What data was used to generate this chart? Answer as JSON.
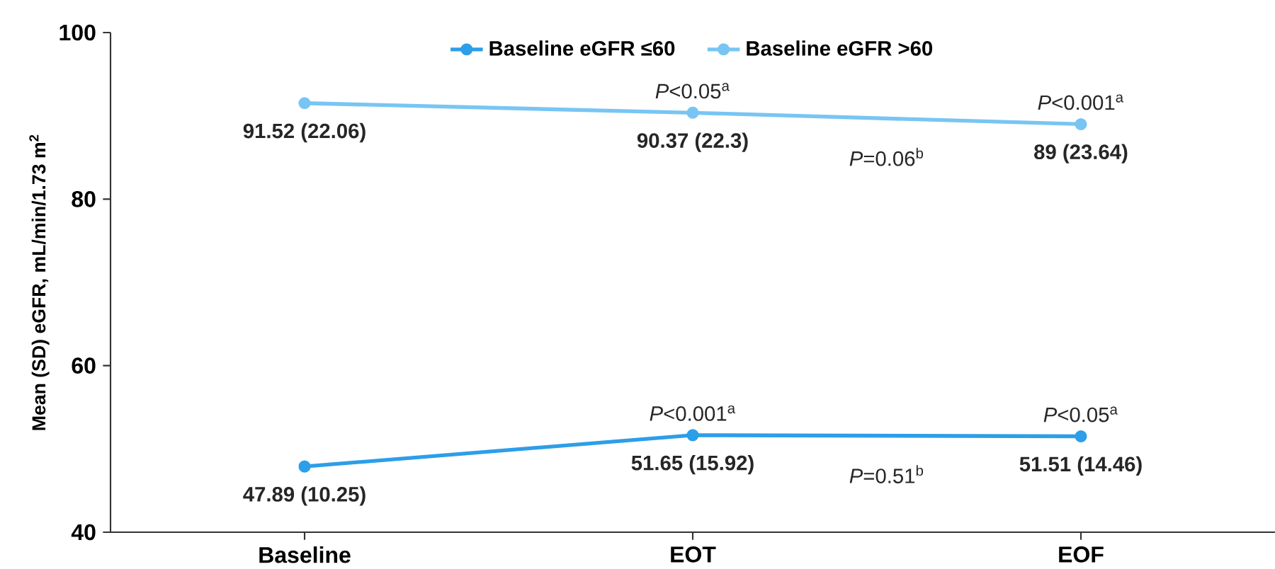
{
  "chart_data": {
    "type": "line",
    "ylabel": "Mean (SD) eGFR, mL/min/1.73 m$^{2}$",
    "categories": [
      "Baseline",
      "EOT",
      "EOF"
    ],
    "series": [
      {
        "name": "Baseline eGFR ≤60",
        "color": "#2d9ee8",
        "values": [
          47.89,
          51.65,
          51.51
        ],
        "value_labels": [
          "47.89 (10.25)",
          "51.65 (15.92)",
          "51.51 (14.46)"
        ]
      },
      {
        "name": "Baseline eGFR >60",
        "color": "#78c5f3",
        "values": [
          91.52,
          90.37,
          89
        ],
        "value_labels": [
          "91.52 (22.06)",
          "90.37 (22.3)",
          "89 (23.64)"
        ]
      }
    ],
    "ylim": [
      40,
      100
    ],
    "yticks": [
      40,
      60,
      80,
      100
    ],
    "annotations": [
      {
        "text": "*P*<0.001$^{a}$",
        "x": "EOT",
        "y": 51.65
      },
      {
        "text": "*P*<0.05$^{a}$",
        "x": "EOF",
        "y": 51.51
      },
      {
        "text": "*P*<0.05$^{a}$",
        "x": "EOT",
        "y": 90.37
      },
      {
        "text": "*P*<0.001$^{a}$",
        "x": "EOF",
        "y": 89
      },
      "*P*=0.51$^{b}$",
      "*P*=0.06$^{b}$"
    ],
    "legend": "top",
    "marker": "circle",
    "line_style": "solid",
    "grid": false
  }
}
